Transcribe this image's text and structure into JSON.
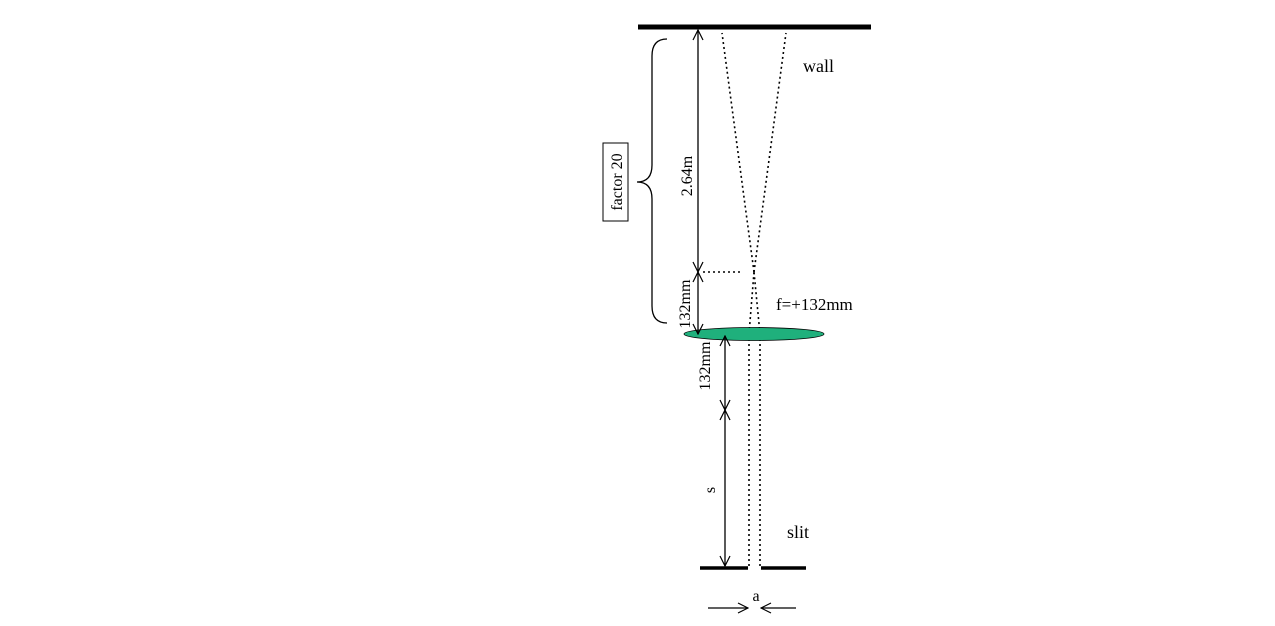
{
  "labels": {
    "wall": "wall",
    "focal_length": "f=+132mm",
    "slit": "slit",
    "distance_wall_upper": "2.64m",
    "distance_lens_upper": "132mm",
    "distance_lens_lower": "132mm",
    "distance_s": "s",
    "slit_width": "a",
    "factor": "factor 20"
  },
  "colors": {
    "lens_fill": "#1fb07c",
    "ink": "#000000",
    "background": "#ffffff"
  }
}
